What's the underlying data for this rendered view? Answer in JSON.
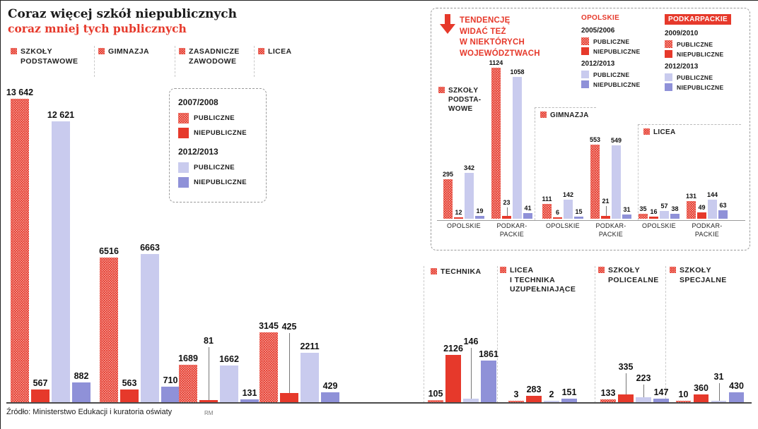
{
  "title": {
    "line1": "Coraz więcej szkół niepublicznych",
    "line2": "coraz mniej tych publicznych"
  },
  "footer": {
    "source": "Źródło: Ministerstwo Edukacji i kuratoria oświaty",
    "credit": "RM"
  },
  "colors": {
    "red": "#e6392b",
    "lavender": "#c9cbee",
    "purple": "#8f91d8"
  },
  "legend_main": {
    "year1": "2007/2008",
    "year2": "2012/2013",
    "publiczne": "PUBLICZNE",
    "niepubliczne": "NIEPUBLICZNE"
  },
  "inset": {
    "heading": [
      "TENDENCJĘ",
      "WIDAĆ TEŻ",
      "W NIEKTÓRYCH",
      "WOJEWÓDZTWACH"
    ],
    "publiczne": "PUBLICZNE",
    "niepubliczne": "NIEPUBLICZNE",
    "legend": [
      {
        "region": "OPOLSKIE",
        "year1": "2005/2006",
        "year2": "2012/2013"
      },
      {
        "region": "PODKARPACKIE",
        "year1": "2009/2010",
        "year2": "2012/2013"
      }
    ],
    "sections": [
      {
        "lines": [
          "SZKOŁY",
          "PODSTA-",
          "WOWE"
        ]
      },
      {
        "lines": [
          "GIMNAZJA"
        ]
      },
      {
        "lines": [
          "LICEA"
        ]
      }
    ]
  },
  "chart_data": [
    {
      "id": "main",
      "type": "bar",
      "series": [
        "2007/2008 PUBLICZNE",
        "2007/2008 NIEPUBLICZNE",
        "2012/2013 PUBLICZNE",
        "2012/2013 NIEPUBLICZNE"
      ],
      "groups": [
        {
          "id": "podstawowe",
          "label": "SZKOŁY PODSTAWOWE",
          "label_lines": [
            "SZKOŁY",
            "PODSTAWOWE"
          ],
          "values": [
            13642,
            567,
            12621,
            882
          ],
          "display": [
            "13 642",
            "567",
            "12 621",
            "882"
          ]
        },
        {
          "id": "gimnazja",
          "label": "GIMNAZJA",
          "label_lines": [
            "GIMNAZJA"
          ],
          "values": [
            6516,
            563,
            6663,
            710
          ]
        },
        {
          "id": "zasadnicze",
          "label": "ZASADNICZE ZAWODOWE",
          "label_lines": [
            "ZASADNICZE",
            "ZAWODOWE"
          ],
          "values": [
            1689,
            81,
            1662,
            131
          ]
        },
        {
          "id": "licea",
          "label": "LICEA",
          "label_lines": [
            "LICEA"
          ],
          "values": [
            3145,
            425,
            2211,
            429
          ]
        },
        {
          "id": "technika",
          "label": "TECHNIKA",
          "label_lines": [
            "TECHNIKA"
          ],
          "values": [
            105,
            2126,
            146,
            1861
          ]
        },
        {
          "id": "licea_tech",
          "label": "LICEA I TECHNIKA UZUPEŁNIAJĄCE",
          "label_lines": [
            "LICEA",
            "I TECHNIKA",
            "UZUPEŁNIAJĄCE"
          ],
          "values": [
            3,
            283,
            2,
            151
          ]
        },
        {
          "id": "policealne",
          "label": "SZKOŁY POLICEALNE",
          "label_lines": [
            "SZKOŁY",
            "POLICEALNE"
          ],
          "values": [
            133,
            335,
            223,
            147
          ]
        },
        {
          "id": "specjalne",
          "label": "SZKOŁY SPECJALNE",
          "label_lines": [
            "SZKOŁY",
            "SPECJALNE"
          ],
          "values": [
            10,
            360,
            31,
            430
          ]
        }
      ]
    },
    {
      "id": "inset",
      "type": "bar",
      "series": [
        "2005/2006 lub 2009/2010 PUBLICZNE",
        "2005/2006 lub 2009/2010 NIEPUBLICZNE",
        "2012/2013 PUBLICZNE",
        "2012/2013 NIEPUBLICZNE"
      ],
      "sections": [
        "SZKOŁY PODSTAWOWE",
        "GIMNAZJA",
        "LICEA"
      ],
      "groups": [
        {
          "id": "sp_op",
          "section": "SZKOŁY PODSTAWOWE",
          "region": "OPOLSKIE",
          "region_lines": [
            "OPOLSKIE"
          ],
          "values": [
            295,
            12,
            342,
            19
          ]
        },
        {
          "id": "sp_pp",
          "section": "SZKOŁY PODSTAWOWE",
          "region": "PODKARPACKIE",
          "region_lines": [
            "PODKAR-",
            "PACKIE"
          ],
          "values": [
            1124,
            23,
            1058,
            41
          ]
        },
        {
          "id": "gim_op",
          "section": "GIMNAZJA",
          "region": "OPOLSKIE",
          "region_lines": [
            "OPOLSKIE"
          ],
          "values": [
            111,
            6,
            142,
            15
          ]
        },
        {
          "id": "gim_pp",
          "section": "GIMNAZJA",
          "region": "PODKARPACKIE",
          "region_lines": [
            "PODKAR-",
            "PACKIE"
          ],
          "values": [
            553,
            21,
            549,
            31
          ]
        },
        {
          "id": "lic_op",
          "section": "LICEA",
          "region": "OPOLSKIE",
          "region_lines": [
            "OPOLSKIE"
          ],
          "values": [
            35,
            16,
            57,
            38
          ]
        },
        {
          "id": "lic_pp",
          "section": "LICEA",
          "region": "PODKARPACKIE",
          "region_lines": [
            "PODKAR-",
            "PACKIE"
          ],
          "values": [
            131,
            49,
            144,
            63
          ]
        }
      ]
    }
  ]
}
